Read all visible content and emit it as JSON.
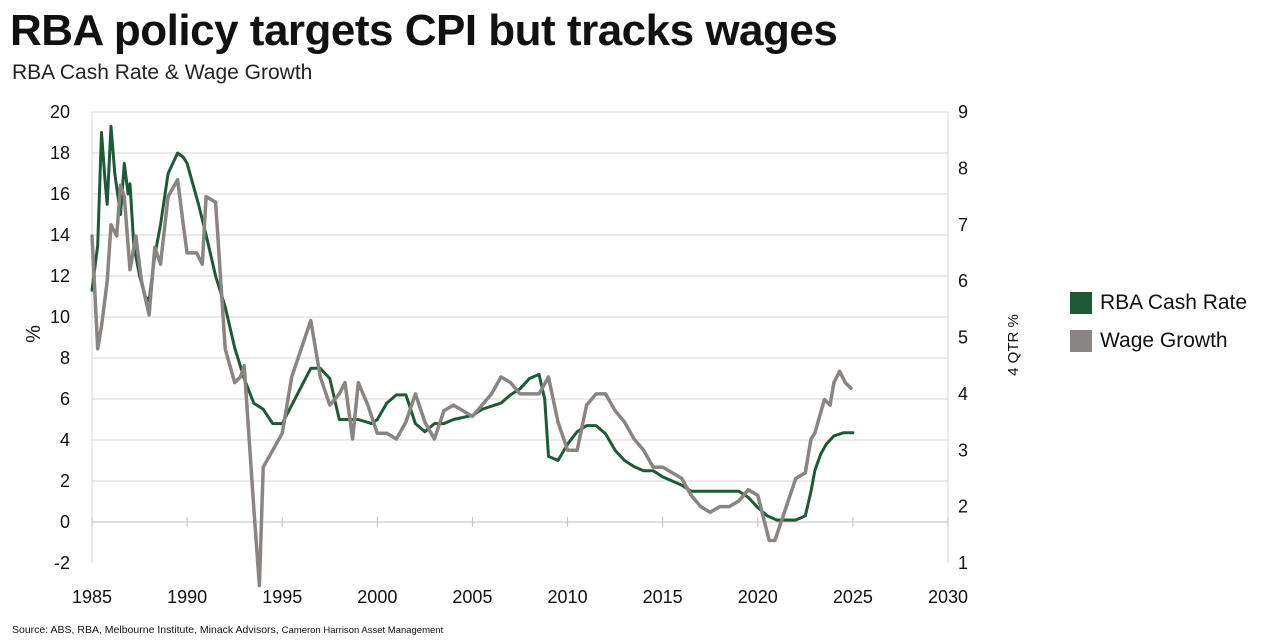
{
  "header": {
    "title": "RBA policy targets CPI but tracks wages",
    "subtitle": "RBA Cash Rate & Wage Growth"
  },
  "source": {
    "text": "Source: ABS, RBA, Melbourne Institute, Minack Advisors,",
    "extra": "Cameron Harrison Asset Management"
  },
  "colors": {
    "cash_rate": "#1d5b36",
    "wage_growth": "#8a8482",
    "grid": "#d6d6d6"
  },
  "chart_data": {
    "type": "line",
    "x_axis": {
      "min": 1985,
      "max": 2030,
      "ticks": [
        1985,
        1990,
        1995,
        2000,
        2005,
        2010,
        2015,
        2020,
        2025,
        2030
      ]
    },
    "y_left": {
      "label": "%",
      "min": -2,
      "max": 20,
      "ticks": [
        -2,
        0,
        2,
        4,
        6,
        8,
        10,
        12,
        14,
        16,
        18,
        20
      ]
    },
    "y_right": {
      "label": "4 QTR %",
      "min": 1,
      "max": 9,
      "ticks": [
        1,
        2,
        3,
        4,
        5,
        6,
        7,
        8,
        9
      ]
    },
    "grid": "horizontal",
    "legend": {
      "position": "right"
    },
    "series": [
      {
        "name": "RBA Cash Rate",
        "axis": "left",
        "color": "#1d5b36",
        "x": [
          1985.0,
          1985.3,
          1985.5,
          1985.7,
          1985.8,
          1986.0,
          1986.2,
          1986.5,
          1986.7,
          1986.9,
          1987.0,
          1987.2,
          1987.5,
          1987.8,
          1988.0,
          1988.3,
          1988.6,
          1989.0,
          1989.5,
          1989.8,
          1990.0,
          1990.3,
          1990.6,
          1991.0,
          1991.5,
          1992.0,
          1992.5,
          1993.0,
          1993.5,
          1994.0,
          1994.5,
          1995.0,
          1996.5,
          1997.0,
          1997.5,
          1998.0,
          1999.0,
          1999.7,
          2000.0,
          2000.5,
          2001.0,
          2001.5,
          2002.0,
          2002.5,
          2003.0,
          2003.5,
          2004.0,
          2005.0,
          2005.5,
          2006.5,
          2007.0,
          2007.5,
          2008.0,
          2008.5,
          2008.8,
          2009.0,
          2009.5,
          2010.0,
          2010.5,
          2011.0,
          2011.5,
          2012.0,
          2012.5,
          2013.0,
          2013.5,
          2014.0,
          2014.5,
          2015.0,
          2015.5,
          2016.0,
          2016.5,
          2017.0,
          2018.0,
          2019.0,
          2019.5,
          2020.0,
          2020.5,
          2021.0,
          2022.0,
          2022.5,
          2022.8,
          2023.0,
          2023.3,
          2023.6,
          2024.0,
          2024.5,
          2025.0
        ],
        "y": [
          11.3,
          13.5,
          19.0,
          16.5,
          15.5,
          19.3,
          17.0,
          15.0,
          17.5,
          16.0,
          16.5,
          13.5,
          12.0,
          11.0,
          10.8,
          13.0,
          14.5,
          17.0,
          18.0,
          17.8,
          17.5,
          16.5,
          15.5,
          14.0,
          12.0,
          10.5,
          8.5,
          7.0,
          5.8,
          5.5,
          4.8,
          4.8,
          7.5,
          7.5,
          7.0,
          5.0,
          5.0,
          4.8,
          5.0,
          5.8,
          6.2,
          6.2,
          4.8,
          4.4,
          4.8,
          4.8,
          5.0,
          5.2,
          5.5,
          5.8,
          6.2,
          6.5,
          7.0,
          7.2,
          6.0,
          3.2,
          3.0,
          3.8,
          4.4,
          4.7,
          4.7,
          4.3,
          3.5,
          3.0,
          2.7,
          2.5,
          2.5,
          2.2,
          2.0,
          1.8,
          1.5,
          1.5,
          1.5,
          1.5,
          1.2,
          0.7,
          0.3,
          0.1,
          0.1,
          0.3,
          1.5,
          2.5,
          3.3,
          3.8,
          4.2,
          4.35,
          4.35
        ]
      },
      {
        "name": "Wage Growth",
        "axis": "right",
        "color": "#8a8482",
        "x": [
          1985.0,
          1985.3,
          1985.5,
          1985.8,
          1986.0,
          1986.3,
          1986.5,
          1986.7,
          1987.0,
          1987.3,
          1987.6,
          1988.0,
          1988.3,
          1988.6,
          1989.0,
          1989.5,
          1989.8,
          1990.0,
          1990.5,
          1990.8,
          1991.0,
          1991.5,
          1992.0,
          1992.5,
          1992.8,
          1993.0,
          1993.5,
          1993.8,
          1994.0,
          1994.5,
          1995.0,
          1995.5,
          1996.0,
          1996.5,
          1997.0,
          1997.5,
          1998.0,
          1998.3,
          1998.7,
          1999.0,
          1999.5,
          2000.0,
          2000.5,
          2001.0,
          2001.5,
          2002.0,
          2002.5,
          2003.0,
          2003.5,
          2004.0,
          2004.5,
          2005.0,
          2005.5,
          2006.0,
          2006.5,
          2007.0,
          2007.5,
          2008.0,
          2008.5,
          2009.0,
          2009.5,
          2010.0,
          2010.5,
          2011.0,
          2011.5,
          2012.0,
          2012.5,
          2013.0,
          2013.5,
          2014.0,
          2014.5,
          2015.0,
          2015.5,
          2016.0,
          2016.5,
          2017.0,
          2017.5,
          2018.0,
          2018.5,
          2019.0,
          2019.5,
          2020.0,
          2020.3,
          2020.6,
          2020.9,
          2021.2,
          2021.5,
          2021.8,
          2022.0,
          2022.5,
          2022.8,
          2023.0,
          2023.5,
          2023.8,
          2024.0,
          2024.3,
          2024.6,
          2024.9
        ],
        "y": [
          6.8,
          4.8,
          5.2,
          6.0,
          7.0,
          6.8,
          7.7,
          7.5,
          6.2,
          6.8,
          6.0,
          5.4,
          6.6,
          6.3,
          7.5,
          7.8,
          7.0,
          6.5,
          6.5,
          6.3,
          7.5,
          7.4,
          4.8,
          4.2,
          4.3,
          4.5,
          2.0,
          0.6,
          2.7,
          3.0,
          3.3,
          4.3,
          4.8,
          5.3,
          4.3,
          3.8,
          4.0,
          4.2,
          3.2,
          4.2,
          3.8,
          3.3,
          3.3,
          3.2,
          3.5,
          4.0,
          3.5,
          3.2,
          3.7,
          3.8,
          3.7,
          3.6,
          3.8,
          4.0,
          4.3,
          4.2,
          4.0,
          4.0,
          4.0,
          4.3,
          3.5,
          3.0,
          3.0,
          3.8,
          4.0,
          4.0,
          3.7,
          3.5,
          3.2,
          3.0,
          2.7,
          2.7,
          2.6,
          2.5,
          2.2,
          2.0,
          1.9,
          2.0,
          2.0,
          2.1,
          2.3,
          2.2,
          1.8,
          1.4,
          1.4,
          1.7,
          2.0,
          2.3,
          2.5,
          2.6,
          3.2,
          3.3,
          3.9,
          3.8,
          4.2,
          4.4,
          4.2,
          4.1
        ]
      }
    ]
  }
}
